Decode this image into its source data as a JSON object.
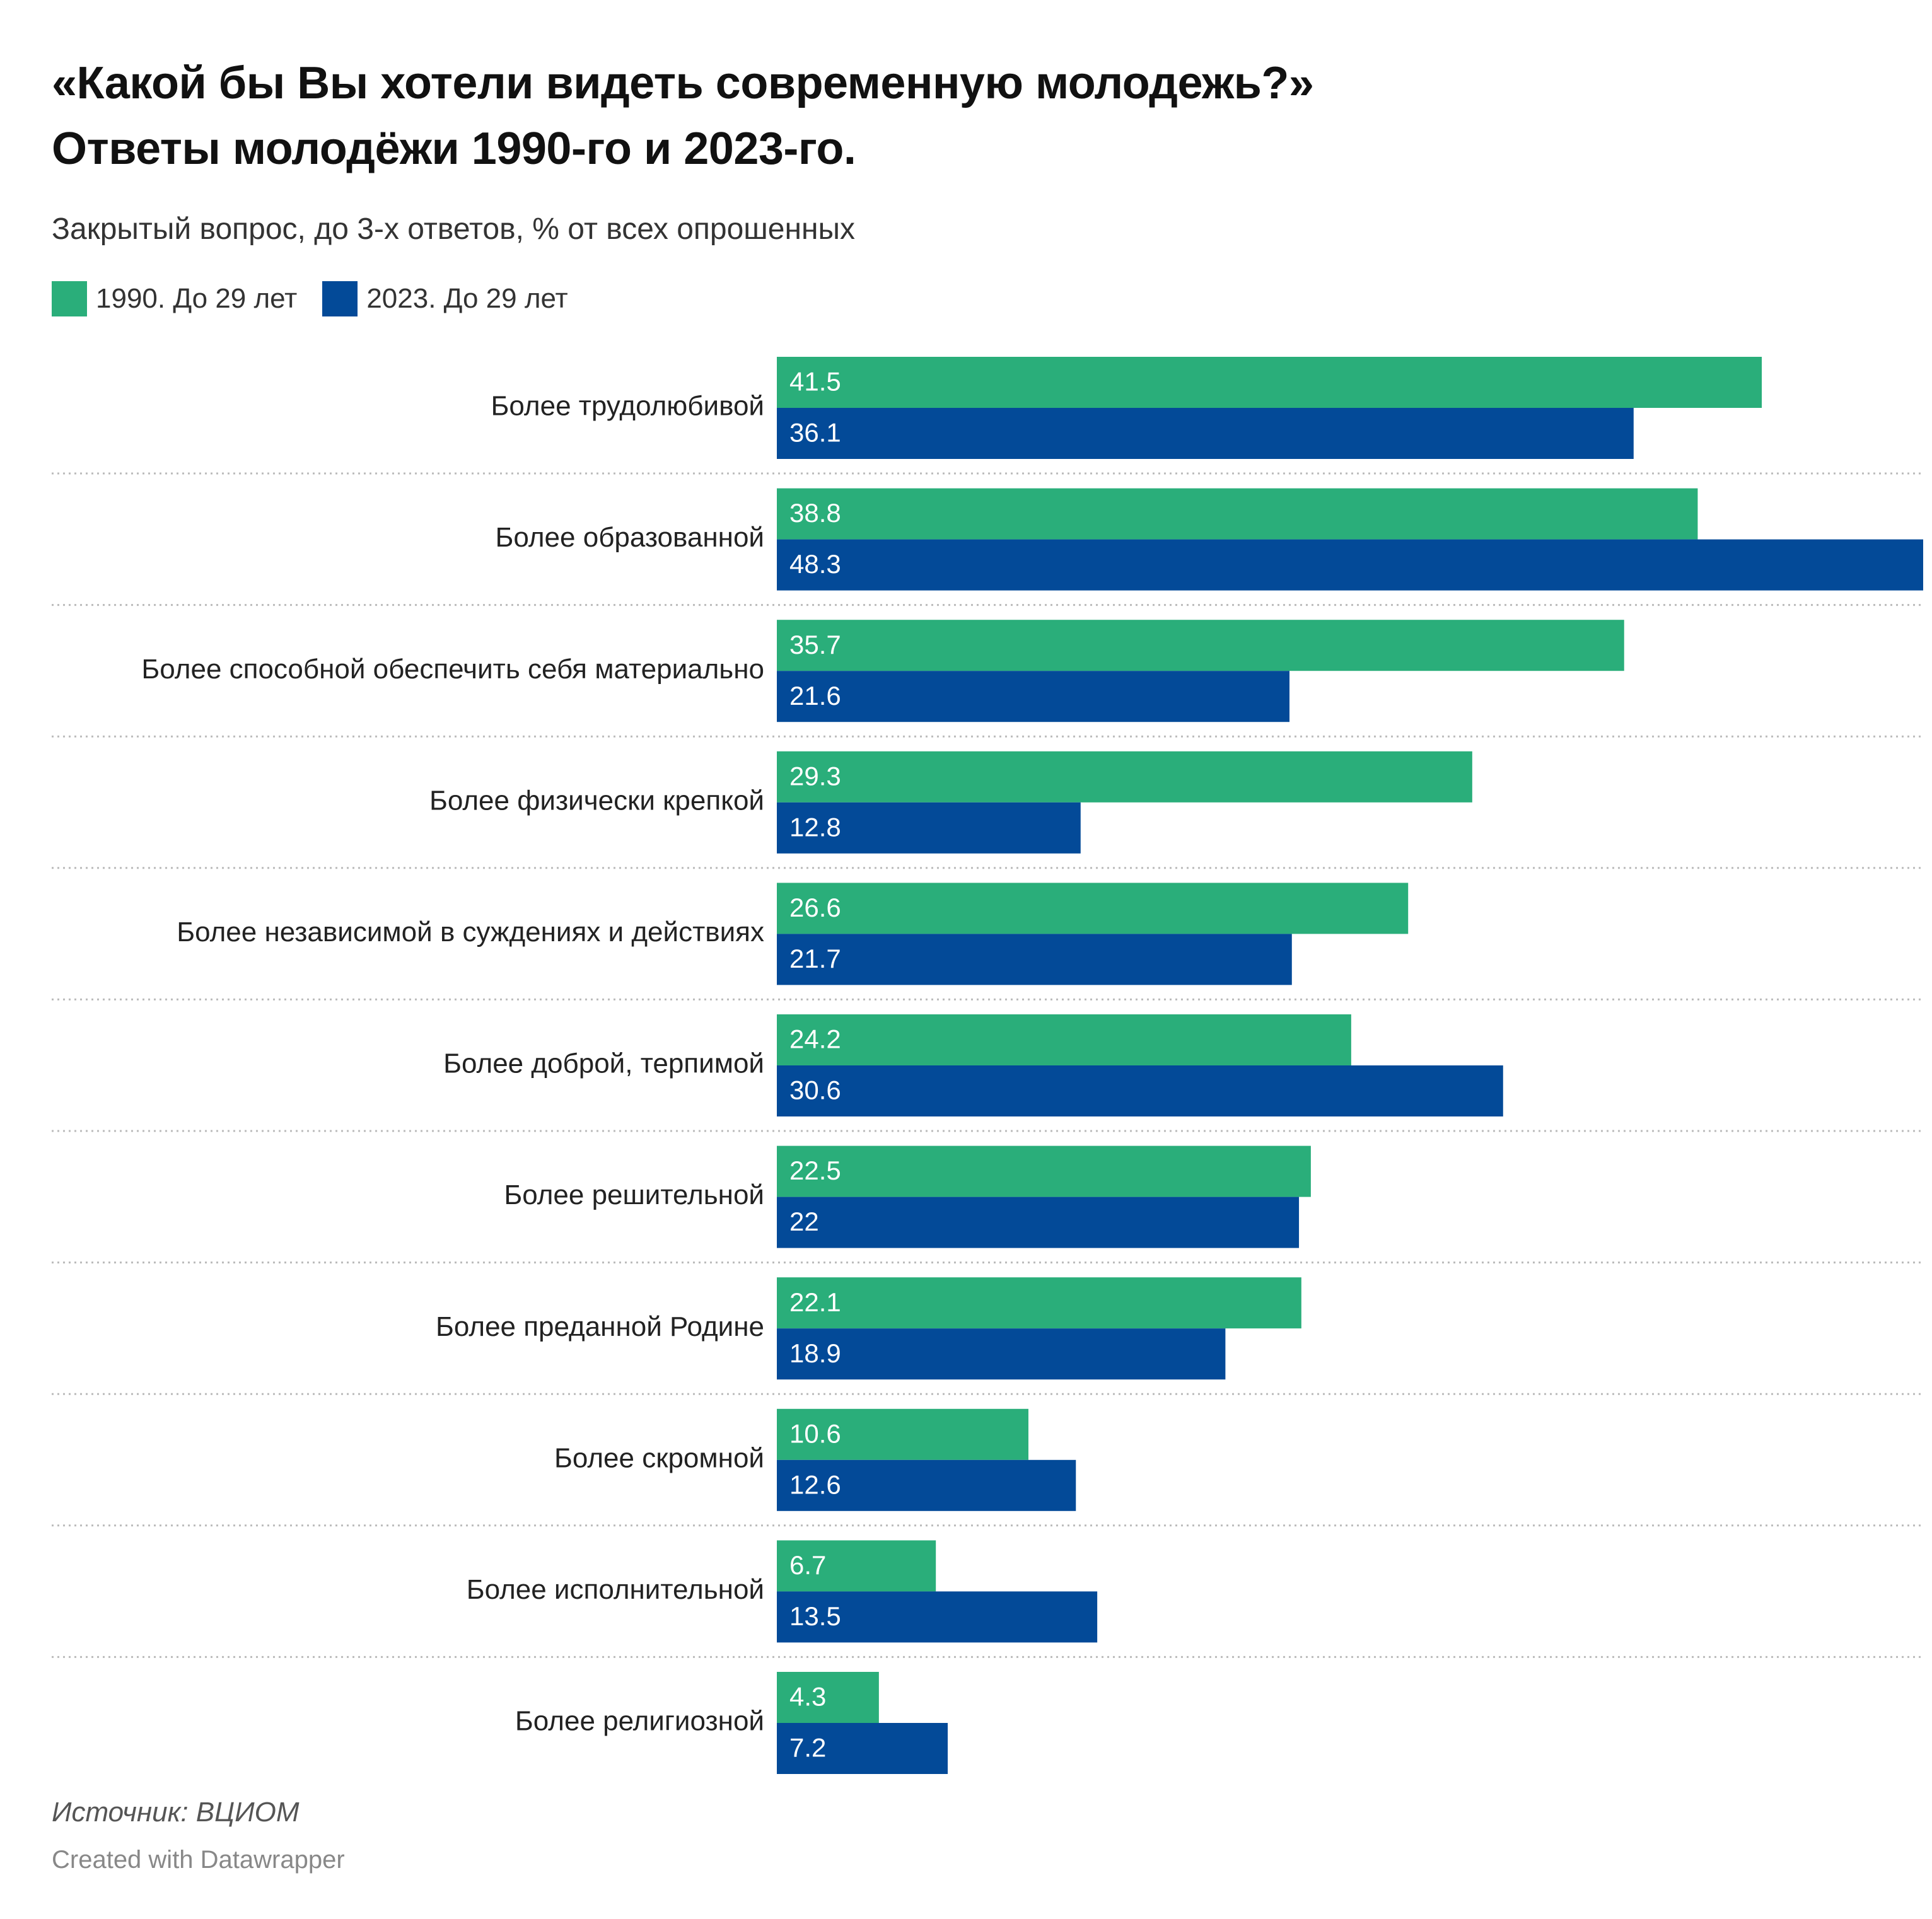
{
  "title_line1": "«Какой бы Вы хотели видеть современную молодежь?»",
  "title_line2": "Ответы молодёжи 1990-го и 2023-го.",
  "subtitle": "Закрытый вопрос, до 3-х ответов, % от всех опрошенных",
  "legend": [
    {
      "label": "1990. До 29 лет",
      "color": "#2aae7a"
    },
    {
      "label": "2023. До 29 лет",
      "color": "#034a98"
    }
  ],
  "source": "Источник: ВЦИОМ",
  "credit": "Created with Datawrapper",
  "chart_data": {
    "type": "bar",
    "orientation": "horizontal",
    "categories": [
      "Более трудолюбивой",
      "Более образованной",
      "Более способной обеспечить себя материально",
      "Более физически крепкой",
      "Более независимой в суждениях и действиях",
      "Более доброй, терпимой",
      "Более решительной",
      "Более преданной Родине",
      "Более скромной",
      "Более исполнительной",
      "Более религиозной"
    ],
    "series": [
      {
        "name": "1990. До 29 лет",
        "color": "#2aae7a",
        "values": [
          41.5,
          38.8,
          35.7,
          29.3,
          26.6,
          24.2,
          22.5,
          22.1,
          10.6,
          6.7,
          4.3
        ],
        "labels": [
          "41.5",
          "38.8",
          "35.7",
          "29.3",
          "26.6",
          "24.2",
          "22.5",
          "22.1",
          "10.6",
          "6.7",
          "4.3"
        ]
      },
      {
        "name": "2023. До 29 лет",
        "color": "#034a98",
        "values": [
          36.1,
          48.3,
          21.6,
          12.8,
          21.7,
          30.6,
          22,
          18.9,
          12.6,
          13.5,
          7.2
        ],
        "labels": [
          "36.1",
          "48.3",
          "21.6",
          "12.8",
          "21.7",
          "30.6",
          "22",
          "18.9",
          "12.6",
          "13.5",
          "7.2"
        ]
      }
    ],
    "xlim": [
      0,
      48.3
    ],
    "grid": false,
    "legend_position": "top-left",
    "separators": "dotted"
  }
}
